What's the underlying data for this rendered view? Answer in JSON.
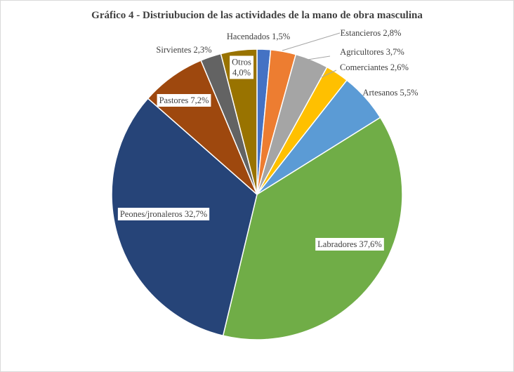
{
  "chart_data": {
    "type": "pie",
    "title": "Gráfico 4 - Distriubucion de las actividades de la mano de obra masculina",
    "slices": [
      {
        "name": "Hacendados",
        "value": 1.5,
        "label": "Hacendados 1,5%",
        "color": "#4472c4"
      },
      {
        "name": "Estancieros",
        "value": 2.8,
        "label": "Estancieros 2,8%",
        "color": "#ed7d31"
      },
      {
        "name": "Agricultores",
        "value": 3.7,
        "label": "Agricultores 3,7%",
        "color": "#a5a5a5"
      },
      {
        "name": "Comerciantes",
        "value": 2.6,
        "label": "Comerciantes 2,6%",
        "color": "#ffc000"
      },
      {
        "name": "Artesanos",
        "value": 5.5,
        "label": "Artesanos 5,5%",
        "color": "#5b9bd5"
      },
      {
        "name": "Labradores",
        "value": 37.6,
        "label": "Labradores 37,6%",
        "color": "#70ad47"
      },
      {
        "name": "Peones/jronaleros",
        "value": 32.7,
        "label": "Peones/jronaleros 32,7%",
        "color": "#264478"
      },
      {
        "name": "Pastores",
        "value": 7.2,
        "label": "Pastores 7,2%",
        "color": "#9e480e"
      },
      {
        "name": "Sirvientes",
        "value": 2.3,
        "label": "Sirvientes 2,3%",
        "color": "#636363"
      },
      {
        "name": "Otros",
        "value": 4.0,
        "label_lines": [
          "Otros",
          "4,0%"
        ],
        "color": "#997300"
      }
    ]
  }
}
